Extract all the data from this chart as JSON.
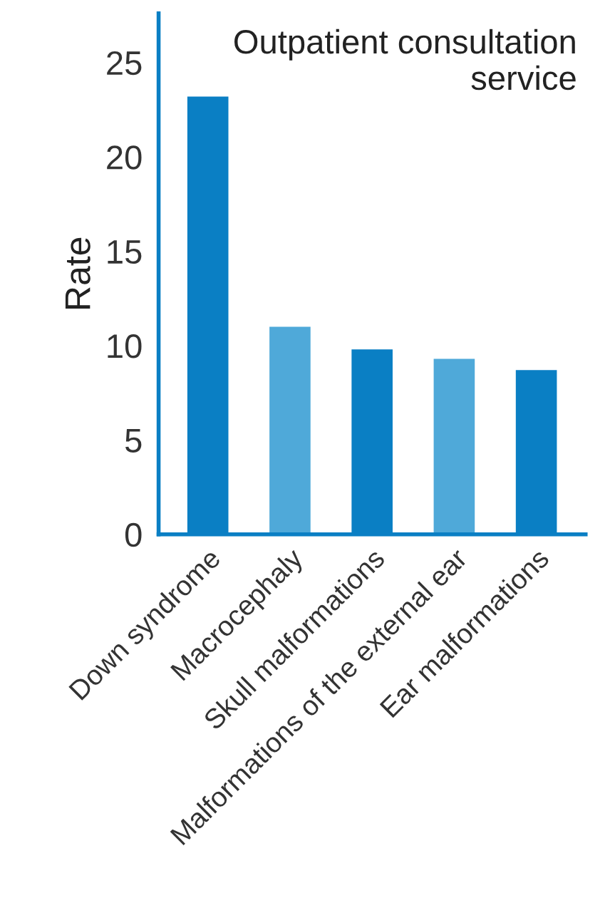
{
  "chart_data": {
    "type": "bar",
    "title": "Outpatient consultation\nservice",
    "ylabel": "Rate",
    "categories": [
      "Down syndrome",
      "Macrocephaly",
      "Skull malformations",
      "Malformations of the external ear",
      "Ear malformations"
    ],
    "values": [
      23.2,
      11.0,
      9.8,
      9.3,
      8.7
    ],
    "colors": [
      "#0a7fc4",
      "#4fa9d9",
      "#0a7fc4",
      "#4fa9d9",
      "#0a7fc4"
    ],
    "ylim": [
      0,
      27.6
    ],
    "yticks": [
      0,
      5,
      10,
      15,
      20,
      25
    ],
    "grid": false,
    "legend": false
  }
}
